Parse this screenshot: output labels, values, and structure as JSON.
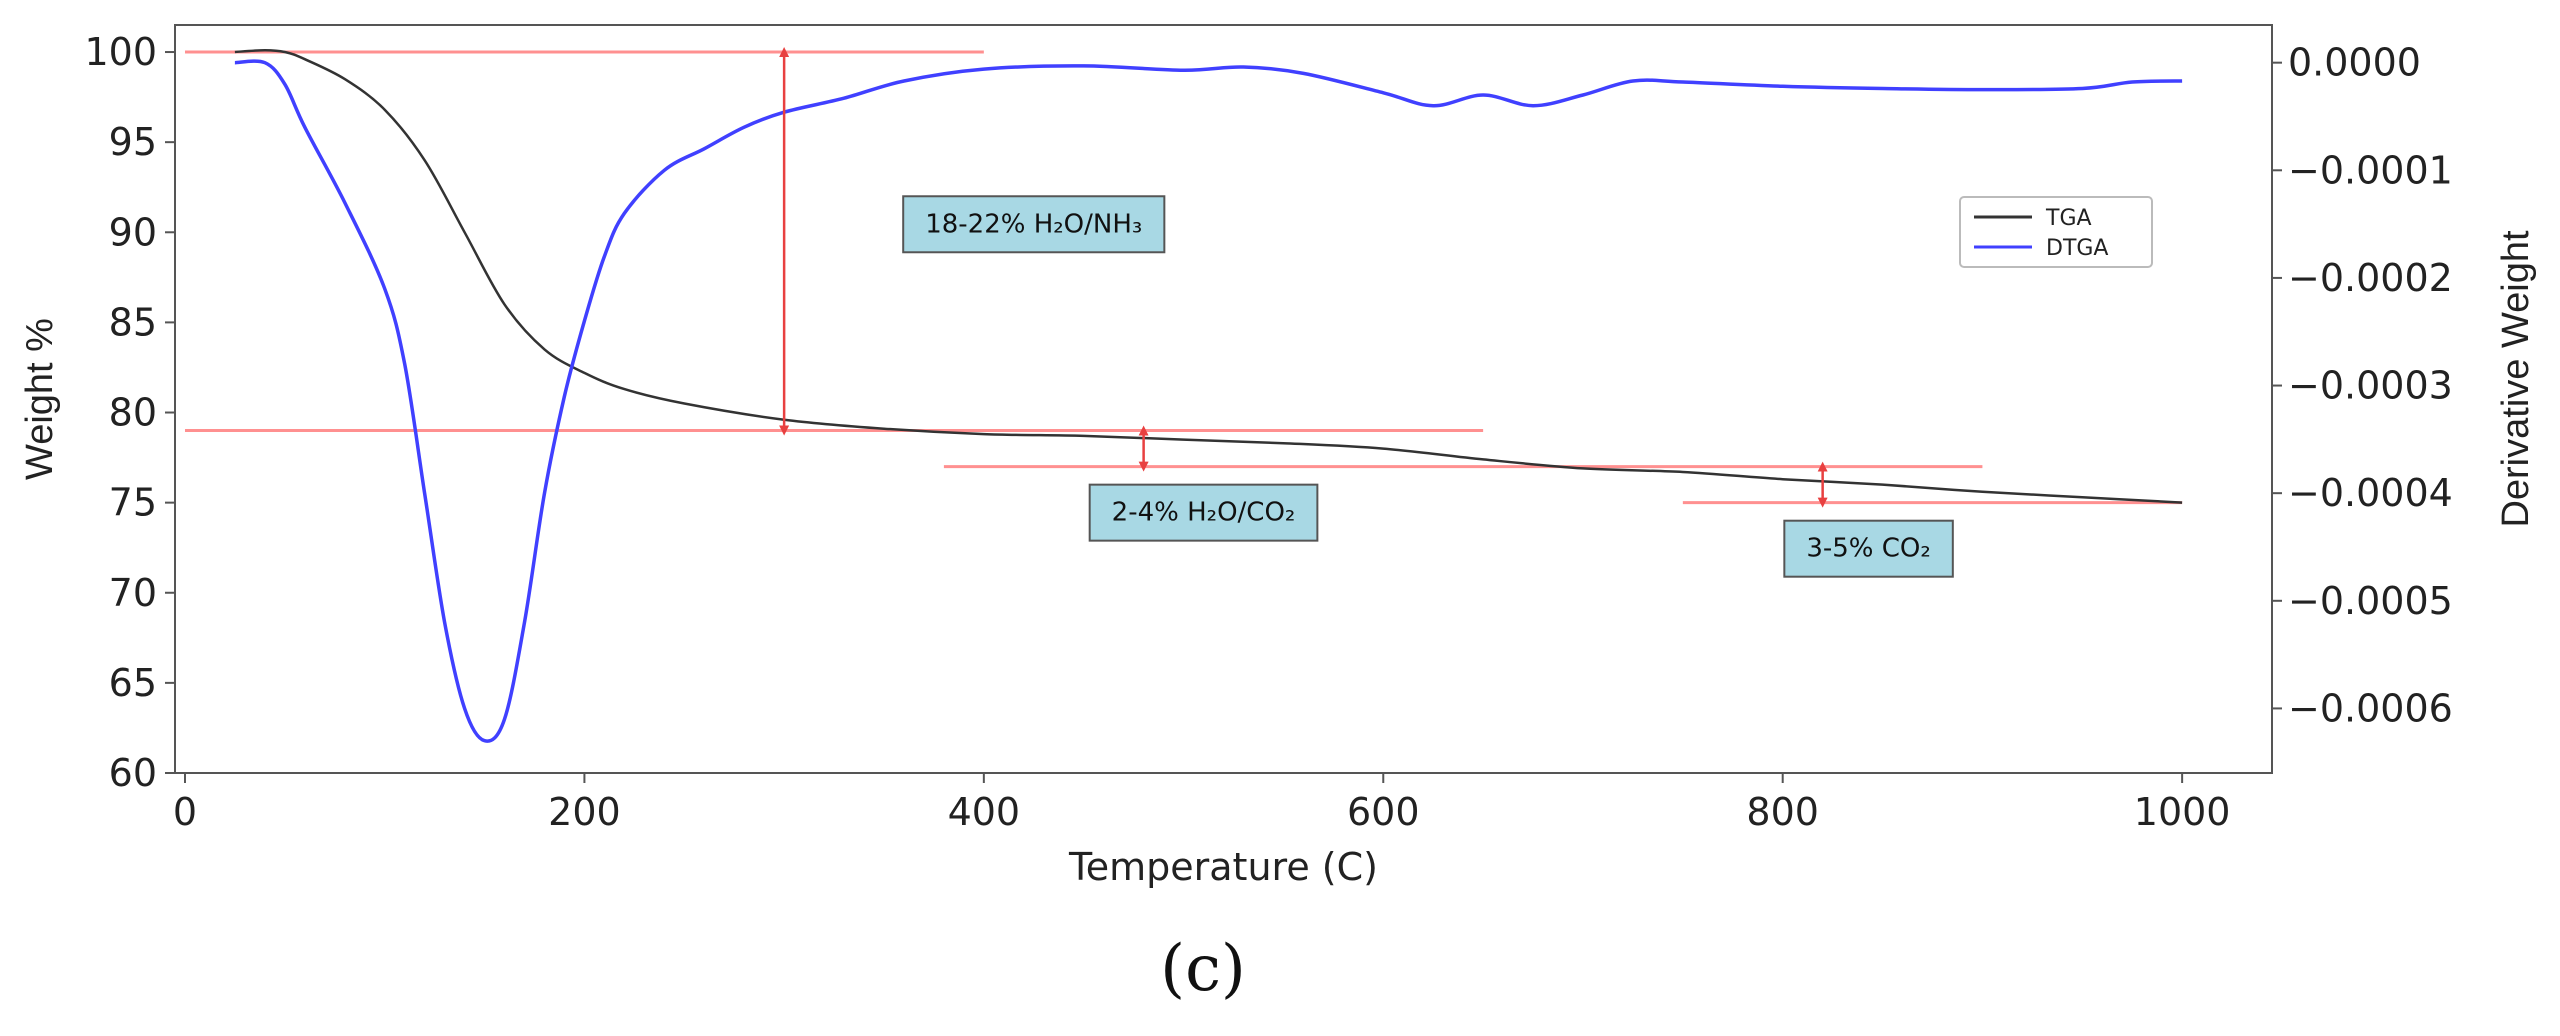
{
  "chart_data": {
    "type": "line",
    "xlabel": "Temperature (C)",
    "ylabel": "Weight %",
    "y2label": "Derivative Weight",
    "xlim": [
      -5,
      1045
    ],
    "ylim": [
      60,
      101.5
    ],
    "y2lim": [
      -0.00066,
      3.5e-05
    ],
    "x_ticks": [
      "0",
      "200",
      "400",
      "600",
      "800",
      "1000"
    ],
    "y_ticks": [
      "60",
      "65",
      "70",
      "75",
      "80",
      "85",
      "90",
      "95",
      "100"
    ],
    "y2_ticks": [
      "0.0000",
      "−0.0001",
      "−0.0002",
      "−0.0003",
      "−0.0004",
      "−0.0005",
      "−0.0006"
    ],
    "legend": {
      "position": "upper-right",
      "entries": [
        {
          "label": "TGA",
          "color": "#333333"
        },
        {
          "label": "DTGA",
          "color": "#4040ff"
        }
      ]
    },
    "series": [
      {
        "name": "TGA",
        "axis": "left",
        "color": "#333333",
        "x": [
          25,
          40,
          50,
          60,
          80,
          100,
          120,
          140,
          160,
          180,
          200,
          220,
          250,
          300,
          350,
          400,
          450,
          500,
          550,
          600,
          650,
          700,
          750,
          800,
          850,
          900,
          950,
          1000
        ],
        "values": [
          100,
          100.1,
          100,
          99.6,
          98.5,
          96.8,
          94,
          90,
          86,
          83.5,
          82.2,
          81.3,
          80.5,
          79.6,
          79.1,
          78.8,
          78.7,
          78.5,
          78.3,
          78,
          77.4,
          76.9,
          76.7,
          76.3,
          76,
          75.6,
          75.3,
          75
        ]
      },
      {
        "name": "DTGA",
        "axis": "right",
        "color": "#4040ff",
        "x": [
          25,
          40,
          50,
          60,
          80,
          100,
          110,
          120,
          130,
          140,
          150,
          160,
          170,
          180,
          190,
          200,
          210,
          220,
          240,
          260,
          280,
          300,
          330,
          360,
          400,
          450,
          500,
          530,
          560,
          600,
          625,
          650,
          675,
          700,
          725,
          750,
          800,
          850,
          900,
          950,
          975,
          1000
        ],
        "values": [
          0,
          0,
          -2e-05,
          -6e-05,
          -0.00013,
          -0.00021,
          -0.00028,
          -0.0004,
          -0.00052,
          -0.0006,
          -0.00063,
          -0.00061,
          -0.00052,
          -0.0004,
          -0.00031,
          -0.00024,
          -0.00018,
          -0.00014,
          -0.0001,
          -8e-05,
          -6e-05,
          -4.6e-05,
          -3.3e-05,
          -1.7e-05,
          -6e-06,
          -3e-06,
          -7e-06,
          -4e-06,
          -1e-05,
          -2.8e-05,
          -4e-05,
          -3e-05,
          -4e-05,
          -3e-05,
          -1.7e-05,
          -1.8e-05,
          -2.2e-05,
          -2.4e-05,
          -2.5e-05,
          -2.4e-05,
          -1.8e-05,
          -1.7e-05
        ]
      }
    ],
    "reference_lines": [
      {
        "name": "ref-line-100",
        "y": 100,
        "x_from": 0,
        "x_to": 400
      },
      {
        "name": "ref-line-79",
        "y": 79,
        "x_from": 0,
        "x_to": 650
      },
      {
        "name": "ref-line-77",
        "y": 77,
        "x_from": 380,
        "x_to": 900
      },
      {
        "name": "ref-line-75",
        "y": 75,
        "x_from": 750,
        "x_to": 1000
      }
    ],
    "loss_arrows": [
      {
        "name": "loss-arrow-1",
        "x": 300,
        "y_from": 100,
        "y_to": 79
      },
      {
        "name": "loss-arrow-2",
        "x": 480,
        "y_from": 79,
        "y_to": 77
      },
      {
        "name": "loss-arrow-3",
        "x": 820,
        "y_from": 77,
        "y_to": 75
      }
    ],
    "annotations": [
      {
        "name": "annotation-h2o-nh3",
        "x": 425,
        "y": 90.5,
        "label": "18-22% H₂O/NH₃"
      },
      {
        "name": "annotation-h2o-co2",
        "x": 510,
        "y": 74.5,
        "label": "2-4% H₂O/CO₂"
      },
      {
        "name": "annotation-co2",
        "x": 843,
        "y": 72.5,
        "label": "3-5% CO₂"
      }
    ],
    "colors": {
      "reference": "#ff9090",
      "arrow": "#e84040",
      "annotation_box": "#a8d8e4",
      "annotation_border": "#555555",
      "axis": "#555555"
    }
  },
  "caption": "(c)"
}
